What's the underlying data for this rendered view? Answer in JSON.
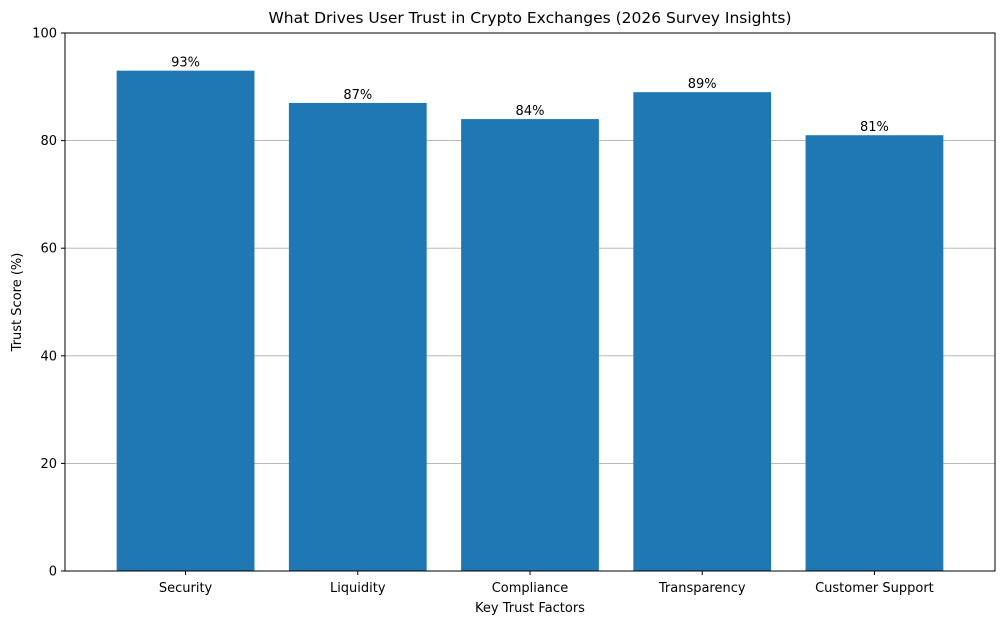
{
  "chart_data": {
    "type": "bar",
    "title": "What Drives User Trust in Crypto Exchanges (2026 Survey Insights)",
    "xlabel": "Key Trust Factors",
    "ylabel": "Trust Score (%)",
    "categories": [
      "Security",
      "Liquidity",
      "Compliance",
      "Transparency",
      "Customer Support"
    ],
    "values": [
      93,
      87,
      84,
      89,
      81
    ],
    "data_labels": [
      "93%",
      "87%",
      "84%",
      "89%",
      "81%"
    ],
    "ylim": [
      0,
      100
    ],
    "yticks": [
      0,
      20,
      40,
      60,
      80,
      100
    ],
    "grid": "y-axis major gridlines on",
    "bar_color": "#1f77b4"
  }
}
